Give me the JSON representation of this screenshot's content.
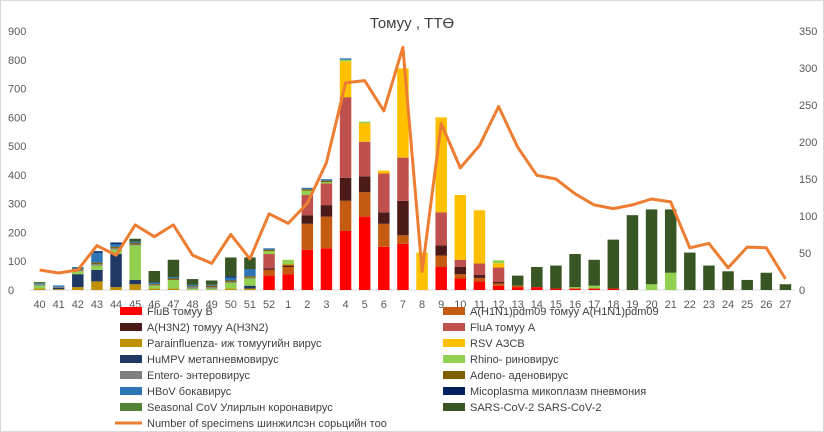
{
  "chart_data": {
    "type": "bar",
    "title": "Томуу , ТТӨ",
    "stacked": true,
    "categories": [
      "40",
      "41",
      "42",
      "43",
      "44",
      "45",
      "46",
      "47",
      "48",
      "49",
      "50",
      "51",
      "52",
      "1",
      "2",
      "3",
      "4",
      "5",
      "6",
      "7",
      "8",
      "9",
      "10",
      "11",
      "12",
      "13",
      "14",
      "15",
      "16",
      "17",
      "18",
      "19",
      "20",
      "21",
      "22",
      "23",
      "24",
      "25",
      "26",
      "27"
    ],
    "y_left": {
      "min": 0,
      "max": 900,
      "ticks": [
        0,
        100,
        200,
        300,
        400,
        500,
        600,
        700,
        800,
        900
      ]
    },
    "y_right": {
      "min": 0,
      "max": 350,
      "ticks": [
        0,
        50,
        100,
        150,
        200,
        250,
        300,
        350
      ]
    },
    "grid": false,
    "legend_position": "bottom",
    "series": [
      {
        "name": "FluB томуу B",
        "color": "#ff0000",
        "axis": "left",
        "values": [
          0,
          0,
          0,
          0,
          0,
          0,
          0,
          0,
          0,
          0,
          0,
          0,
          50,
          55,
          140,
          145,
          205,
          255,
          150,
          160,
          0,
          80,
          40,
          30,
          15,
          10,
          10,
          5,
          5,
          5,
          5,
          0,
          0,
          0,
          0,
          0,
          0,
          0,
          0,
          0
        ]
      },
      {
        "name": "A(H1N1)pdm09 томуу A(H1N1)pdm09",
        "color": "#c55a11",
        "axis": "left",
        "values": [
          0,
          0,
          0,
          0,
          0,
          0,
          0,
          0,
          0,
          0,
          0,
          0,
          20,
          25,
          90,
          110,
          105,
          85,
          80,
          30,
          0,
          40,
          15,
          12,
          8,
          5,
          0,
          0,
          0,
          0,
          0,
          0,
          0,
          0,
          0,
          0,
          0,
          0,
          0,
          0
        ]
      },
      {
        "name": "A(H3N2) томуу A(H3N2)",
        "color": "#4d1a1a",
        "axis": "left",
        "values": [
          0,
          0,
          0,
          0,
          0,
          0,
          0,
          0,
          0,
          0,
          0,
          0,
          5,
          5,
          30,
          40,
          80,
          55,
          40,
          120,
          0,
          35,
          25,
          10,
          5,
          0,
          0,
          0,
          0,
          0,
          0,
          0,
          0,
          0,
          0,
          0,
          0,
          0,
          0,
          0
        ]
      },
      {
        "name": "FluA томуу A",
        "color": "#c0504d",
        "axis": "left",
        "values": [
          0,
          0,
          0,
          0,
          0,
          0,
          0,
          0,
          0,
          0,
          0,
          0,
          50,
          0,
          70,
          75,
          280,
          120,
          135,
          150,
          0,
          115,
          25,
          40,
          50,
          0,
          0,
          0,
          0,
          0,
          0,
          0,
          0,
          0,
          0,
          0,
          0,
          0,
          0,
          0
        ]
      },
      {
        "name": "Parainfluenza- иж томуугийн вирус",
        "color": "#bf9000",
        "axis": "left",
        "values": [
          5,
          3,
          10,
          30,
          10,
          20,
          5,
          5,
          0,
          0,
          5,
          5,
          0,
          5,
          0,
          0,
          0,
          0,
          0,
          0,
          0,
          0,
          0,
          0,
          0,
          0,
          0,
          0,
          0,
          0,
          0,
          0,
          0,
          0,
          0,
          0,
          0,
          0,
          0,
          0
        ]
      },
      {
        "name": "RSV АЗСВ",
        "color": "#ffc000",
        "axis": "left",
        "values": [
          0,
          0,
          0,
          0,
          0,
          0,
          0,
          0,
          0,
          0,
          0,
          0,
          0,
          0,
          0,
          0,
          125,
          65,
          10,
          310,
          130,
          330,
          225,
          185,
          15,
          0,
          0,
          0,
          0,
          0,
          0,
          0,
          0,
          0,
          0,
          0,
          0,
          0,
          0,
          0
        ]
      },
      {
        "name": "HuMPV метапневмовирус",
        "color": "#203864",
        "axis": "left",
        "values": [
          0,
          5,
          45,
          40,
          115,
          15,
          0,
          0,
          0,
          0,
          0,
          10,
          0,
          0,
          0,
          0,
          0,
          0,
          0,
          0,
          0,
          0,
          0,
          0,
          0,
          0,
          0,
          0,
          0,
          0,
          0,
          0,
          0,
          0,
          0,
          0,
          0,
          0,
          0,
          0
        ]
      },
      {
        "name": "Rhino- риновирус",
        "color": "#92d050",
        "axis": "left",
        "values": [
          10,
          0,
          10,
          15,
          15,
          120,
          10,
          30,
          5,
          5,
          20,
          25,
          10,
          15,
          15,
          5,
          5,
          5,
          0,
          0,
          0,
          0,
          0,
          0,
          10,
          0,
          0,
          0,
          5,
          10,
          0,
          0,
          20,
          60,
          0,
          0,
          0,
          0,
          0,
          0
        ]
      },
      {
        "name": "Entero- энтеровирус",
        "color": "#808080",
        "axis": "left",
        "values": [
          5,
          3,
          5,
          5,
          5,
          3,
          3,
          0,
          5,
          5,
          3,
          3,
          0,
          0,
          0,
          0,
          0,
          0,
          0,
          0,
          0,
          0,
          0,
          0,
          0,
          0,
          0,
          0,
          0,
          0,
          0,
          0,
          0,
          0,
          0,
          0,
          0,
          0,
          0,
          0
        ]
      },
      {
        "name": "Adeno- аденовирус",
        "color": "#7f6000",
        "axis": "left",
        "values": [
          0,
          0,
          5,
          5,
          5,
          5,
          3,
          5,
          3,
          5,
          5,
          5,
          5,
          0,
          5,
          5,
          0,
          0,
          0,
          0,
          0,
          0,
          0,
          0,
          0,
          0,
          0,
          0,
          0,
          0,
          0,
          0,
          0,
          0,
          0,
          0,
          0,
          0,
          0,
          0
        ]
      },
      {
        "name": "HBoV бокавирус",
        "color": "#2e75b6",
        "axis": "left",
        "values": [
          3,
          5,
          5,
          35,
          10,
          5,
          5,
          5,
          5,
          3,
          10,
          25,
          5,
          0,
          5,
          5,
          5,
          0,
          0,
          0,
          0,
          0,
          0,
          0,
          0,
          0,
          0,
          0,
          0,
          0,
          0,
          0,
          0,
          0,
          0,
          0,
          0,
          0,
          0,
          0
        ]
      },
      {
        "name": "Micoplasma микоплазм пневмония",
        "color": "#002060",
        "axis": "left",
        "values": [
          0,
          0,
          0,
          5,
          5,
          0,
          0,
          0,
          0,
          0,
          5,
          0,
          0,
          0,
          0,
          0,
          0,
          0,
          0,
          0,
          0,
          0,
          0,
          0,
          0,
          0,
          0,
          0,
          0,
          0,
          0,
          0,
          0,
          0,
          0,
          0,
          0,
          0,
          0,
          0
        ]
      },
      {
        "name": "Seasonal CoV Улирлын коронавирус",
        "color": "#548235",
        "axis": "left",
        "values": [
          5,
          0,
          0,
          0,
          0,
          0,
          0,
          0,
          0,
          0,
          0,
          0,
          0,
          0,
          0,
          0,
          0,
          0,
          0,
          0,
          0,
          0,
          0,
          0,
          0,
          0,
          0,
          0,
          0,
          0,
          0,
          0,
          0,
          0,
          0,
          0,
          0,
          0,
          0,
          0
        ]
      },
      {
        "name": "SARS-CoV-2 SARS-CoV-2",
        "color": "#375623",
        "axis": "left",
        "values": [
          0,
          0,
          0,
          0,
          0,
          10,
          40,
          60,
          20,
          15,
          65,
          40,
          0,
          0,
          0,
          0,
          0,
          0,
          0,
          0,
          0,
          0,
          0,
          0,
          0,
          35,
          70,
          80,
          115,
          90,
          170,
          260,
          260,
          220,
          130,
          85,
          65,
          35,
          60,
          20
        ]
      },
      {
        "name": "Number of specimens шинжилсэн сорьцийн тоо",
        "color": "#ed7d31",
        "axis": "right",
        "type": "line",
        "values": [
          27,
          23,
          27,
          60,
          47,
          88,
          72,
          88,
          47,
          36,
          75,
          42,
          103,
          90,
          117,
          172,
          280,
          283,
          242,
          328,
          25,
          225,
          165,
          195,
          248,
          193,
          155,
          150,
          130,
          115,
          110,
          115,
          123,
          119,
          57,
          63,
          30,
          58,
          57,
          15
        ]
      }
    ]
  }
}
